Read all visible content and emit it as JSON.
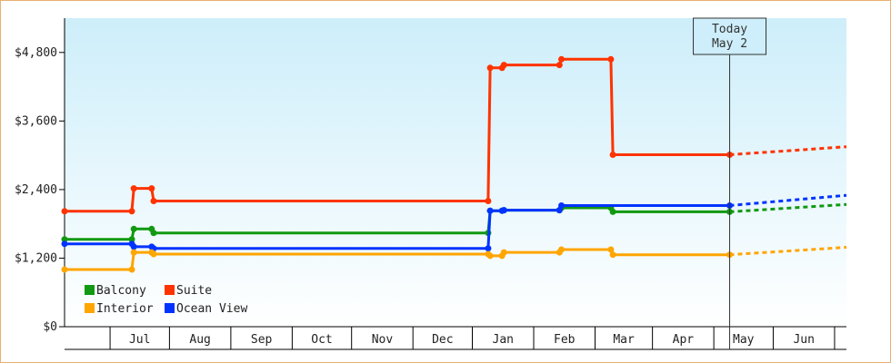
{
  "chart_data": {
    "type": "line",
    "subtype": "step",
    "grid": false,
    "legend_position": "bottom-left",
    "y_axis": {
      "range": [
        0,
        5400
      ],
      "ticks": [
        0,
        1200,
        2400,
        3600,
        4800
      ],
      "tick_labels": [
        "$0",
        "$1,200",
        "$2,400",
        "$3,600",
        "$4,800"
      ]
    },
    "x_axis": {
      "range": [
        "2023-06-01",
        "2024-06-30"
      ],
      "months": [
        {
          "label": "Jul",
          "start": "2023-06-24",
          "end": "2023-07-24"
        },
        {
          "label": "Aug",
          "start": "2023-07-24",
          "end": "2023-08-24"
        },
        {
          "label": "Sep",
          "start": "2023-08-24",
          "end": "2023-09-24"
        },
        {
          "label": "Oct",
          "start": "2023-09-24",
          "end": "2023-10-24"
        },
        {
          "label": "Nov",
          "start": "2023-10-24",
          "end": "2023-11-24"
        },
        {
          "label": "Dec",
          "start": "2023-11-24",
          "end": "2023-12-24"
        },
        {
          "label": "Jan",
          "start": "2023-12-24",
          "end": "2024-01-24"
        },
        {
          "label": "Feb",
          "start": "2024-01-24",
          "end": "2024-02-24"
        },
        {
          "label": "Mar",
          "start": "2024-02-24",
          "end": "2024-03-24"
        },
        {
          "label": "Apr",
          "start": "2024-03-24",
          "end": "2024-04-24"
        },
        {
          "label": "May",
          "start": "2024-04-24",
          "end": "2024-05-24"
        },
        {
          "label": "Jun",
          "start": "2024-05-24",
          "end": "2024-06-24"
        }
      ]
    },
    "today_marker": {
      "date": "2024-05-02",
      "label_line1": "Today",
      "label_line2": "May 2"
    },
    "legend": [
      {
        "name": "Balcony",
        "color": "#119911"
      },
      {
        "name": "Suite",
        "color": "#ff3300"
      },
      {
        "name": "Interior",
        "color": "#ffa500"
      },
      {
        "name": "Ocean View",
        "color": "#0033ff"
      }
    ],
    "series": [
      {
        "name": "Suite",
        "color": "#ff3300",
        "points": [
          [
            "2023-06-01",
            2020
          ],
          [
            "2023-07-05",
            2020
          ],
          [
            "2023-07-06",
            2420
          ],
          [
            "2023-07-15",
            2420
          ],
          [
            "2023-07-16",
            2200
          ],
          [
            "2024-01-01",
            2200
          ],
          [
            "2024-01-02",
            4530
          ],
          [
            "2024-01-08",
            4530
          ],
          [
            "2024-01-09",
            4580
          ],
          [
            "2024-02-06",
            4580
          ],
          [
            "2024-02-07",
            4680
          ],
          [
            "2024-03-03",
            4680
          ],
          [
            "2024-03-04",
            3010
          ],
          [
            "2024-05-02",
            3010
          ]
        ],
        "forecast": [
          [
            "2024-05-02",
            3010
          ],
          [
            "2024-06-30",
            3150
          ]
        ]
      },
      {
        "name": "Balcony",
        "color": "#119911",
        "points": [
          [
            "2023-06-01",
            1530
          ],
          [
            "2023-07-05",
            1530
          ],
          [
            "2023-07-06",
            1710
          ],
          [
            "2023-07-15",
            1710
          ],
          [
            "2023-07-16",
            1640
          ],
          [
            "2024-01-01",
            1640
          ],
          [
            "2024-01-02",
            2030
          ],
          [
            "2024-01-08",
            2030
          ],
          [
            "2024-01-09",
            2040
          ],
          [
            "2024-02-06",
            2040
          ],
          [
            "2024-02-07",
            2080
          ],
          [
            "2024-03-03",
            2080
          ],
          [
            "2024-03-04",
            2010
          ],
          [
            "2024-05-02",
            2010
          ]
        ],
        "forecast": [
          [
            "2024-05-02",
            2010
          ],
          [
            "2024-06-30",
            2140
          ]
        ]
      },
      {
        "name": "Ocean View",
        "color": "#0033ff",
        "points": [
          [
            "2023-06-01",
            1450
          ],
          [
            "2023-07-05",
            1450
          ],
          [
            "2023-07-06",
            1400
          ],
          [
            "2023-07-15",
            1400
          ],
          [
            "2023-07-16",
            1370
          ],
          [
            "2024-01-01",
            1370
          ],
          [
            "2024-01-02",
            2030
          ],
          [
            "2024-01-08",
            2030
          ],
          [
            "2024-01-09",
            2040
          ],
          [
            "2024-02-06",
            2040
          ],
          [
            "2024-02-07",
            2120
          ],
          [
            "2024-05-02",
            2120
          ]
        ],
        "forecast": [
          [
            "2024-05-02",
            2120
          ],
          [
            "2024-06-30",
            2300
          ]
        ]
      },
      {
        "name": "Interior",
        "color": "#ffa500",
        "points": [
          [
            "2023-06-01",
            1000
          ],
          [
            "2023-07-05",
            1000
          ],
          [
            "2023-07-06",
            1300
          ],
          [
            "2023-07-15",
            1300
          ],
          [
            "2023-07-16",
            1270
          ],
          [
            "2024-01-01",
            1270
          ],
          [
            "2024-01-02",
            1240
          ],
          [
            "2024-01-08",
            1240
          ],
          [
            "2024-01-09",
            1300
          ],
          [
            "2024-02-06",
            1300
          ],
          [
            "2024-02-07",
            1350
          ],
          [
            "2024-03-03",
            1350
          ],
          [
            "2024-03-04",
            1260
          ],
          [
            "2024-05-02",
            1260
          ]
        ],
        "forecast": [
          [
            "2024-05-02",
            1260
          ],
          [
            "2024-06-30",
            1390
          ]
        ]
      }
    ]
  }
}
